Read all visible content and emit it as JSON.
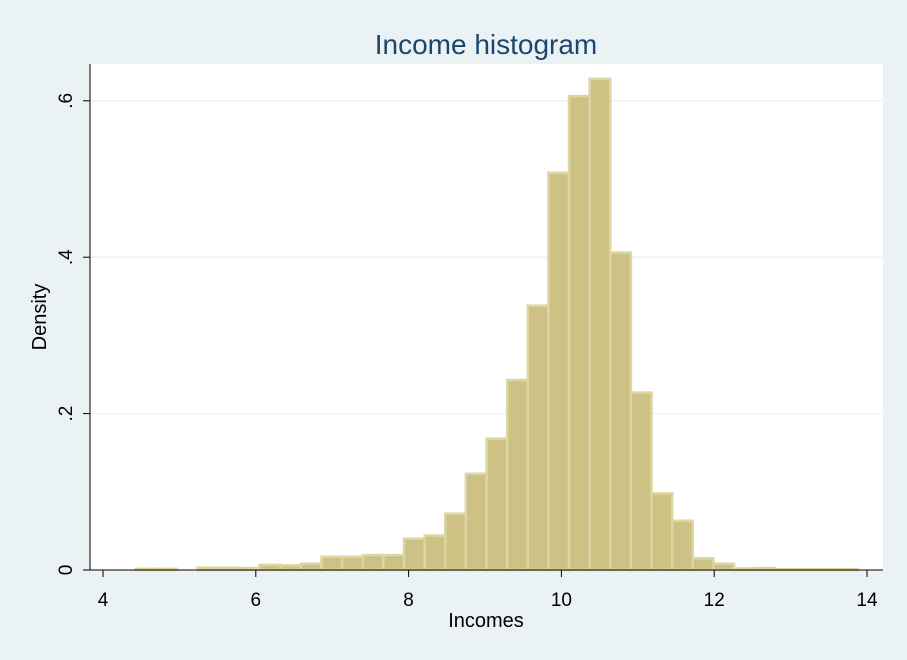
{
  "chart_data": {
    "type": "bar",
    "title": "Income histogram",
    "xlabel": "Incomes",
    "ylabel": "Density",
    "xlim": [
      4,
      14
    ],
    "ylim": [
      0,
      0.65
    ],
    "xticks": [
      4,
      6,
      8,
      10,
      12,
      14
    ],
    "xtick_labels": [
      "4",
      "6",
      "8",
      "10",
      "12",
      "14"
    ],
    "yticks": [
      0,
      0.2,
      0.4,
      0.6
    ],
    "ytick_labels": [
      "0",
      ".2",
      ".4",
      ".6"
    ],
    "grid": true,
    "bin_edges": [
      4.43,
      4.7,
      4.97,
      5.24,
      5.51,
      5.78,
      6.05,
      6.32,
      6.59,
      6.86,
      7.13,
      7.4,
      7.67,
      7.94,
      8.21,
      8.48,
      8.75,
      9.02,
      9.29,
      9.56,
      9.83,
      10.1,
      10.37,
      10.64,
      10.91,
      11.18,
      11.45,
      11.72,
      11.99,
      12.26,
      12.53,
      12.8,
      13.07,
      13.34,
      13.61,
      13.88
    ],
    "densities": [
      0.0015,
      0.0015,
      0,
      0.003,
      0.003,
      0.0025,
      0.0065,
      0.006,
      0.008,
      0.017,
      0.017,
      0.019,
      0.019,
      0.04,
      0.044,
      0.072,
      0.123,
      0.168,
      0.243,
      0.338,
      0.508,
      0.606,
      0.628,
      0.406,
      0.227,
      0.098,
      0.063,
      0.015,
      0.008,
      0.002,
      0.0025,
      0.001,
      0.001,
      0.001,
      0.001
    ],
    "bar_color": "#cdc283",
    "bar_edge_color": "#dcd6a3",
    "plot_background": "#ffffff",
    "page_background": "#eaf2f3",
    "title_color": "#1a476f"
  }
}
